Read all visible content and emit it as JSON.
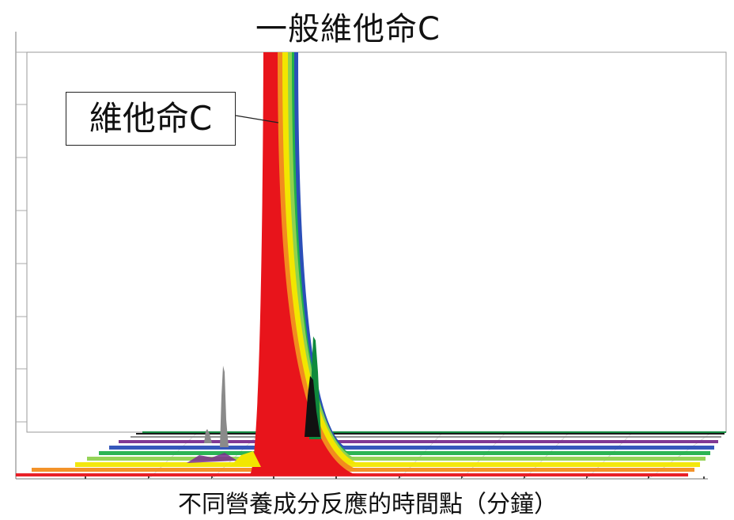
{
  "chart_data": {
    "type": "area",
    "title": "一般維他命C",
    "xlabel": "不同營養成分反應的時間點（分鐘）",
    "ylabel": "",
    "annotations": [
      {
        "text": "維他命C",
        "target": "main peak"
      }
    ],
    "y_axis_ticks_labeled": false,
    "x_axis_ticks_labeled": false,
    "grid": false,
    "style": "3D waterfall of overlapping chromatogram traces",
    "series": [
      {
        "color": "#e8141b"
      },
      {
        "color": "#f28c1e"
      },
      {
        "color": "#f2e600"
      },
      {
        "color": "#8fd14f"
      },
      {
        "color": "#21b04b"
      },
      {
        "color": "#2b4fb8"
      },
      {
        "color": "#7a2e8e"
      },
      {
        "color": "#8a8a8a"
      },
      {
        "color": "#111111"
      },
      {
        "color": "#0f8a3c"
      }
    ]
  }
}
